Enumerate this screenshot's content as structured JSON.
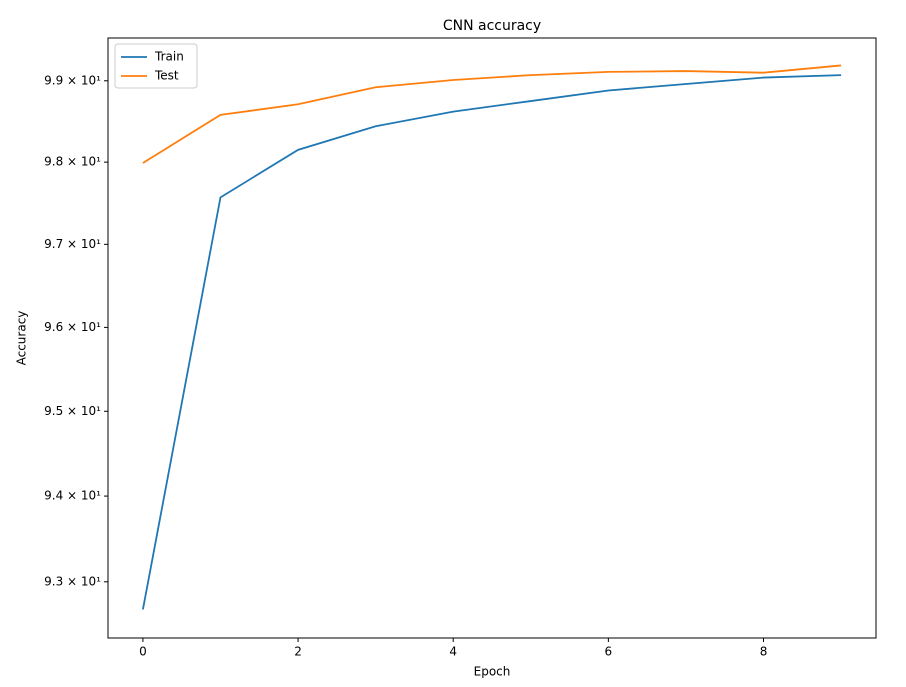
{
  "chart_data": {
    "type": "line",
    "title": "CNN accuracy",
    "x_label": "Epoch",
    "y_label": "Accuracy",
    "x": [
      0,
      1,
      2,
      3,
      4,
      5,
      6,
      7,
      8,
      9
    ],
    "series": [
      {
        "name": "Train",
        "color": "#1f77b4",
        "values": [
          92.68,
          97.57,
          98.15,
          98.44,
          98.62,
          98.75,
          98.88,
          98.96,
          99.04,
          99.07
        ]
      },
      {
        "name": "Test",
        "color": "#ff7f0e",
        "values": [
          97.99,
          98.58,
          98.71,
          98.92,
          99.01,
          99.07,
          99.11,
          99.12,
          99.1,
          99.19
        ]
      }
    ],
    "xlim": [
      -0.45,
      9.45
    ],
    "xticks": [
      0,
      2,
      4,
      6,
      8
    ],
    "ylim": [
      92.35,
      99.53
    ],
    "ylog": true,
    "yticks": [
      {
        "value": 93,
        "label": "9.3 × 10¹"
      },
      {
        "value": 94,
        "label": "9.4 × 10¹"
      },
      {
        "value": 95,
        "label": "9.5 × 10¹"
      },
      {
        "value": 96,
        "label": "9.6 × 10¹"
      },
      {
        "value": 97,
        "label": "9.7 × 10¹"
      },
      {
        "value": 98,
        "label": "9.8 × 10¹"
      },
      {
        "value": 99,
        "label": "9.9 × 10¹"
      }
    ],
    "legend": "upper left",
    "grid": false
  }
}
